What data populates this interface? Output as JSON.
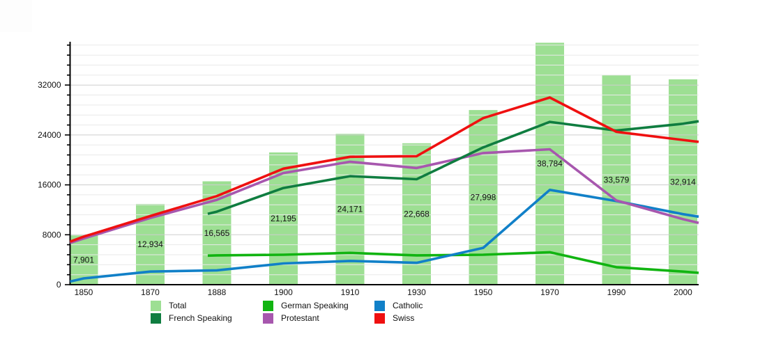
{
  "chart_data": {
    "type": "combo_bar_line",
    "title": "",
    "categories": [
      "1850",
      "1870",
      "1888",
      "1900",
      "1910",
      "1930",
      "1950",
      "1970",
      "1990",
      "2000"
    ],
    "bars": {
      "name": "Total",
      "color": "#9ddf93",
      "values": [
        7901,
        12934,
        16565,
        21195,
        24171,
        22668,
        27998,
        38784,
        33579,
        32914
      ],
      "labels": [
        "7,901",
        "12,934",
        "16,565",
        "21,195",
        "24,171",
        "22,668",
        "27,998",
        "38,784",
        "33,579",
        "32,914"
      ]
    },
    "series": [
      {
        "name": "German Speaking",
        "color": "#11b411",
        "values": [
          null,
          null,
          4700,
          4800,
          5100,
          4700,
          4800,
          5200,
          2800,
          2100
        ],
        "edge_left": 4650,
        "edge_left_x": 298,
        "edge_right": 1900
      },
      {
        "name": "Catholic",
        "color": "#1180c8",
        "values": [
          1000,
          2100,
          2300,
          3400,
          3800,
          3500,
          5900,
          15200,
          13400,
          11300
        ],
        "edge_left": 500,
        "edge_right": 10900
      },
      {
        "name": "Protestant",
        "color": "#a757ae",
        "values": [
          7400,
          10700,
          13600,
          17900,
          19700,
          18700,
          21100,
          21700,
          13500,
          10500
        ],
        "edge_left": 6700,
        "edge_right": 9900
      },
      {
        "name": "French Speaking",
        "color": "#0f7d40",
        "values": [
          null,
          null,
          11700,
          15500,
          17400,
          16900,
          22000,
          26100,
          24700,
          25800
        ],
        "edge_left": 11350,
        "edge_left_x": 298,
        "edge_right": 26200
      },
      {
        "name": "Swiss",
        "color": "#ef1010",
        "values": [
          7700,
          11000,
          14200,
          18600,
          20500,
          20600,
          26700,
          30000,
          24500,
          23200
        ],
        "edge_left": 6900,
        "edge_right": 22900
      }
    ],
    "y_axis": {
      "label_values": [
        0,
        8000,
        16000,
        24000,
        32000
      ],
      "tick_labels": [
        "0",
        "8000",
        "16000",
        "24000",
        "32000"
      ],
      "minor_step": 1600,
      "major_step": 8000,
      "max_tick": 38400,
      "grid": true
    },
    "ylim": [
      0,
      38950
    ],
    "legend_position": "bottom",
    "legend": {
      "rows": [
        [
          {
            "label": "Total",
            "color": "#9ddf93"
          },
          {
            "label": "German Speaking",
            "color": "#11b411"
          },
          {
            "label": "Catholic",
            "color": "#1180c8"
          }
        ],
        [
          {
            "label": "French Speaking",
            "color": "#0f7d40"
          },
          {
            "label": "Protestant",
            "color": "#a757ae"
          },
          {
            "label": "Swiss",
            "color": "#ef1010"
          }
        ]
      ]
    },
    "colors": {
      "grid_minor": "#e9e9e9",
      "grid_major": "#cdcdcd",
      "axis": "#000000",
      "text": "#111111",
      "background": "#ffffff"
    }
  }
}
